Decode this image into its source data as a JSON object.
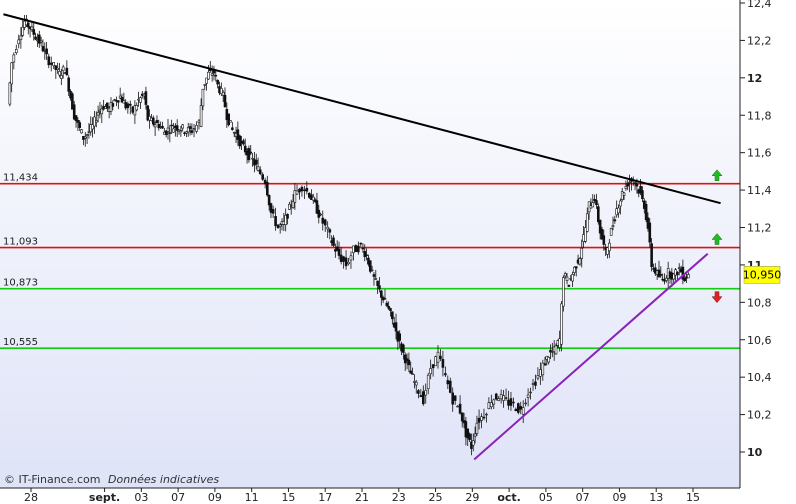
{
  "chart_data": {
    "type": "candlestick",
    "y_axis_position": "right",
    "ylim": [
      9.92,
      12.45
    ],
    "y_ticks": [
      {
        "value": 12.4,
        "label": "12,4",
        "bold": false
      },
      {
        "value": 12.2,
        "label": "12,2",
        "bold": false
      },
      {
        "value": 12.0,
        "label": "12",
        "bold": true
      },
      {
        "value": 11.8,
        "label": "11,8",
        "bold": false
      },
      {
        "value": 11.6,
        "label": "11,6",
        "bold": false
      },
      {
        "value": 11.4,
        "label": "11,4",
        "bold": false
      },
      {
        "value": 11.2,
        "label": "11,2",
        "bold": false
      },
      {
        "value": 11.0,
        "label": "11",
        "bold": true
      },
      {
        "value": 10.8,
        "label": "10,8",
        "bold": false
      },
      {
        "value": 10.6,
        "label": "10,6",
        "bold": false
      },
      {
        "value": 10.4,
        "label": "10,4",
        "bold": false
      },
      {
        "value": 10.2,
        "label": "10,2",
        "bold": false
      },
      {
        "value": 10.0,
        "label": "10",
        "bold": true
      }
    ],
    "x_ticks": [
      {
        "t": 0,
        "label": "28",
        "bold": false
      },
      {
        "t": 4,
        "label": "sept.",
        "bold": true
      },
      {
        "t": 6,
        "label": "03",
        "bold": false
      },
      {
        "t": 8,
        "label": "07",
        "bold": false
      },
      {
        "t": 10,
        "label": "09",
        "bold": false
      },
      {
        "t": 12,
        "label": "11",
        "bold": false
      },
      {
        "t": 14,
        "label": "15",
        "bold": false
      },
      {
        "t": 16,
        "label": "17",
        "bold": false
      },
      {
        "t": 18,
        "label": "21",
        "bold": false
      },
      {
        "t": 20,
        "label": "23",
        "bold": false
      },
      {
        "t": 22,
        "label": "25",
        "bold": false
      },
      {
        "t": 24,
        "label": "29",
        "bold": false
      },
      {
        "t": 26,
        "label": "oct.",
        "bold": true
      },
      {
        "t": 28,
        "label": "05",
        "bold": false
      },
      {
        "t": 30,
        "label": "07",
        "bold": false
      },
      {
        "t": 32,
        "label": "09",
        "bold": false
      },
      {
        "t": 34,
        "label": "13",
        "bold": false
      },
      {
        "t": 36,
        "label": "15",
        "bold": false
      }
    ],
    "x_range": [
      -1.5,
      37.5
    ],
    "grid": false,
    "horizontal_levels": [
      {
        "value": 11.434,
        "label": "11,434",
        "color": "#dd1111",
        "arrow": "up"
      },
      {
        "value": 11.093,
        "label": "11,093",
        "color": "#dd1111",
        "arrow": "up"
      },
      {
        "value": 10.873,
        "label": "10,873",
        "color": "#11cc11",
        "arrow": "down"
      },
      {
        "value": 10.555,
        "label": "10,555",
        "color": "#11cc11",
        "arrow": "none"
      }
    ],
    "trend_lines": [
      {
        "color": "#000000",
        "points": [
          [
            -1.5,
            12.34
          ],
          [
            37.5,
            11.33
          ]
        ]
      },
      {
        "color": "#8822bb",
        "points": [
          [
            24.1,
            9.96
          ],
          [
            36.8,
            11.06
          ]
        ]
      }
    ],
    "current_price": {
      "value": 10.95,
      "label": "10,950"
    },
    "colors": {
      "background_top": "#ffffff",
      "background_bottom": "#dfe3f7",
      "candle": "#111111",
      "arrow_up": "#22bb22",
      "arrow_down": "#dd2222"
    },
    "path": [
      [
        -1.2,
        11.86
      ],
      [
        -1.0,
        12.08
      ],
      [
        -0.6,
        12.22
      ],
      [
        -0.3,
        12.3
      ],
      [
        0.0,
        12.27
      ],
      [
        0.3,
        12.22
      ],
      [
        0.6,
        12.18
      ],
      [
        0.9,
        12.11
      ],
      [
        1.3,
        12.06
      ],
      [
        1.6,
        12.02
      ],
      [
        1.9,
        12.05
      ],
      [
        2.2,
        11.9
      ],
      [
        2.4,
        11.8
      ],
      [
        2.6,
        11.75
      ],
      [
        2.9,
        11.68
      ],
      [
        3.1,
        11.7
      ],
      [
        3.4,
        11.74
      ],
      [
        3.7,
        11.82
      ],
      [
        4.0,
        11.85
      ],
      [
        4.3,
        11.83
      ],
      [
        4.6,
        11.88
      ],
      [
        4.9,
        11.9
      ],
      [
        5.2,
        11.85
      ],
      [
        5.6,
        11.82
      ],
      [
        5.9,
        11.88
      ],
      [
        6.2,
        11.91
      ],
      [
        6.4,
        11.78
      ],
      [
        6.7,
        11.76
      ],
      [
        7.0,
        11.75
      ],
      [
        7.3,
        11.71
      ],
      [
        7.6,
        11.73
      ],
      [
        7.9,
        11.74
      ],
      [
        8.2,
        11.73
      ],
      [
        8.5,
        11.72
      ],
      [
        8.8,
        11.72
      ],
      [
        9.2,
        11.76
      ],
      [
        9.4,
        11.95
      ],
      [
        9.7,
        12.02
      ],
      [
        10.0,
        12.03
      ],
      [
        10.2,
        11.96
      ],
      [
        10.5,
        11.9
      ],
      [
        10.7,
        11.8
      ],
      [
        11.0,
        11.72
      ],
      [
        11.2,
        11.7
      ],
      [
        11.5,
        11.64
      ],
      [
        11.8,
        11.6
      ],
      [
        12.1,
        11.56
      ],
      [
        12.4,
        11.51
      ],
      [
        12.8,
        11.45
      ],
      [
        13.1,
        11.28
      ],
      [
        13.5,
        11.2
      ],
      [
        13.8,
        11.22
      ],
      [
        14.1,
        11.3
      ],
      [
        14.4,
        11.38
      ],
      [
        14.8,
        11.42
      ],
      [
        15.2,
        11.38
      ],
      [
        15.5,
        11.32
      ],
      [
        15.8,
        11.25
      ],
      [
        16.2,
        11.18
      ],
      [
        16.5,
        11.1
      ],
      [
        16.8,
        11.05
      ],
      [
        17.2,
        11.0
      ],
      [
        17.6,
        11.08
      ],
      [
        18.0,
        11.1
      ],
      [
        18.3,
        11.05
      ],
      [
        18.6,
        10.95
      ],
      [
        18.9,
        10.88
      ],
      [
        19.2,
        10.82
      ],
      [
        19.5,
        10.76
      ],
      [
        19.8,
        10.68
      ],
      [
        20.1,
        10.58
      ],
      [
        20.4,
        10.5
      ],
      [
        20.7,
        10.42
      ],
      [
        21.0,
        10.35
      ],
      [
        21.4,
        10.28
      ],
      [
        21.8,
        10.45
      ],
      [
        22.2,
        10.52
      ],
      [
        22.6,
        10.4
      ],
      [
        23.0,
        10.28
      ],
      [
        23.4,
        10.22
      ],
      [
        23.7,
        10.1
      ],
      [
        24.0,
        10.03
      ],
      [
        24.3,
        10.16
      ],
      [
        24.7,
        10.2
      ],
      [
        25.1,
        10.28
      ],
      [
        25.5,
        10.3
      ],
      [
        25.9,
        10.27
      ],
      [
        26.3,
        10.25
      ],
      [
        26.7,
        10.22
      ],
      [
        27.1,
        10.32
      ],
      [
        27.5,
        10.38
      ],
      [
        27.9,
        10.46
      ],
      [
        28.2,
        10.52
      ],
      [
        28.5,
        10.54
      ],
      [
        28.8,
        10.6
      ],
      [
        29.0,
        10.95
      ],
      [
        29.3,
        10.9
      ],
      [
        29.6,
        10.98
      ],
      [
        29.9,
        11.05
      ],
      [
        30.2,
        11.2
      ],
      [
        30.4,
        11.32
      ],
      [
        30.7,
        11.36
      ],
      [
        31.0,
        11.18
      ],
      [
        31.3,
        11.06
      ],
      [
        31.6,
        11.18
      ],
      [
        31.9,
        11.3
      ],
      [
        32.2,
        11.38
      ],
      [
        32.5,
        11.44
      ],
      [
        32.8,
        11.46
      ],
      [
        33.1,
        11.4
      ],
      [
        33.4,
        11.32
      ],
      [
        33.6,
        11.2
      ],
      [
        33.8,
        11.0
      ],
      [
        34.1,
        10.95
      ],
      [
        34.4,
        10.92
      ],
      [
        34.7,
        10.96
      ],
      [
        35.0,
        10.94
      ],
      [
        35.3,
        10.98
      ],
      [
        35.6,
        10.93
      ],
      [
        35.8,
        10.95
      ]
    ]
  },
  "credit": {
    "source": "© IT-Finance.com",
    "note": "Données indicatives"
  }
}
